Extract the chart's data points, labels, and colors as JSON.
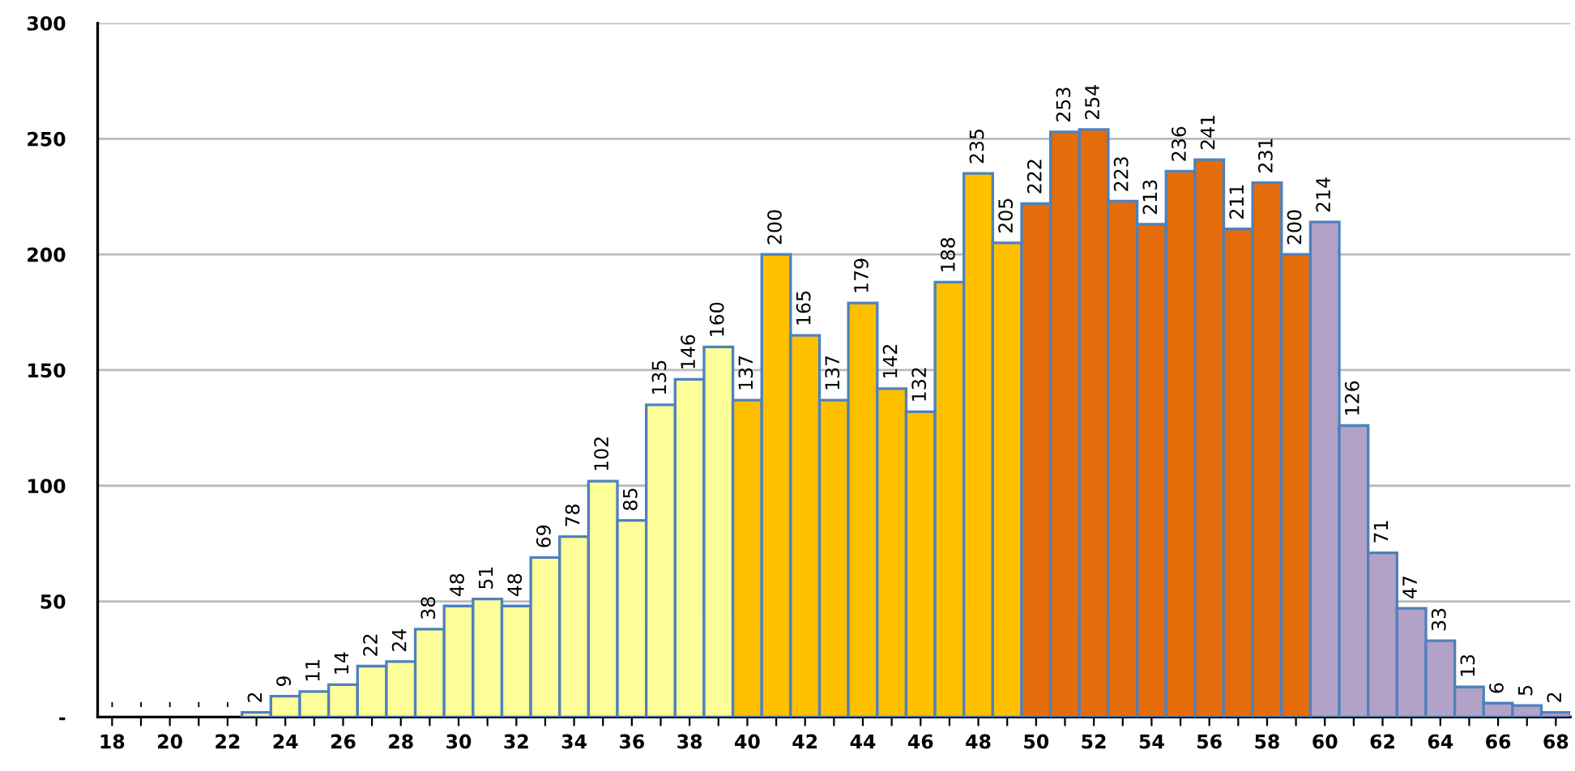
{
  "chart_data": {
    "type": "bar",
    "categories": [
      "18",
      null,
      "20",
      null,
      "22",
      null,
      "24",
      null,
      "26",
      null,
      "28",
      null,
      "30",
      null,
      "32",
      null,
      "34",
      null,
      "36",
      null,
      "38",
      null,
      "40",
      null,
      "42",
      null,
      "44",
      null,
      "46",
      null,
      "48",
      null,
      "50",
      null,
      "52",
      null,
      "54",
      null,
      "56",
      null,
      "58",
      null,
      "60",
      null,
      "62",
      null,
      "64",
      null,
      "66",
      null,
      "68"
    ],
    "values": [
      0,
      0,
      0,
      0,
      0,
      2,
      9,
      11,
      14,
      22,
      24,
      38,
      48,
      51,
      48,
      69,
      78,
      102,
      85,
      135,
      146,
      160,
      137,
      200,
      165,
      137,
      179,
      142,
      132,
      188,
      235,
      205,
      222,
      253,
      254,
      223,
      213,
      236,
      241,
      211,
      231,
      200,
      214,
      126,
      71,
      47,
      33,
      13,
      6,
      5,
      2
    ],
    "value_labels": [
      "-",
      "-",
      "-",
      "-",
      "-",
      "2",
      "9",
      "11",
      "14",
      "22",
      "24",
      "38",
      "48",
      "51",
      "48",
      "69",
      "78",
      "102",
      "85",
      "135",
      "146",
      "160",
      "137",
      "200",
      "165",
      "137",
      "179",
      "142",
      "132",
      "188",
      "235",
      "205",
      "222",
      "253",
      "254",
      "223",
      "213",
      "236",
      "241",
      "211",
      "231",
      "200",
      "214",
      "126",
      "71",
      "47",
      "33",
      "13",
      "6",
      "5",
      "2"
    ],
    "colors": [
      "#ffff99",
      "#ffff99",
      "#ffff99",
      "#ffff99",
      "#ffff99",
      "#ffff99",
      "#ffff99",
      "#ffff99",
      "#ffff99",
      "#ffff99",
      "#ffff99",
      "#ffff99",
      "#ffff99",
      "#ffff99",
      "#ffff99",
      "#ffff99",
      "#ffff99",
      "#ffff99",
      "#ffff99",
      "#ffff99",
      "#ffff99",
      "#ffff99",
      "#ffc000",
      "#ffc000",
      "#ffc000",
      "#ffc000",
      "#ffc000",
      "#ffc000",
      "#ffc000",
      "#ffc000",
      "#ffc000",
      "#ffc000",
      "#e46c0a",
      "#e46c0a",
      "#e46c0a",
      "#e46c0a",
      "#e46c0a",
      "#e46c0a",
      "#e46c0a",
      "#e46c0a",
      "#e46c0a",
      "#e46c0a",
      "#b3a2c7",
      "#b3a2c7",
      "#b3a2c7",
      "#b3a2c7",
      "#b3a2c7",
      "#b3a2c7",
      "#b3a2c7",
      "#b3a2c7",
      "#b3a2c7"
    ],
    "ylim": [
      0,
      300
    ],
    "yticks": [
      {
        "value": 0,
        "label": "-"
      },
      50,
      100,
      150,
      200,
      250,
      300
    ],
    "grid": "y",
    "legend": false
  }
}
